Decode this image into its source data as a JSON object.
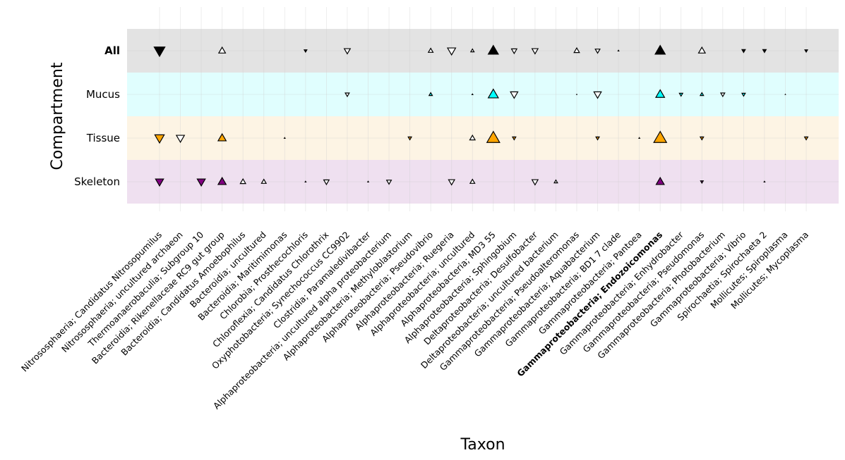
{
  "chart_data": {
    "type": "scatter",
    "xlabel": "Taxon",
    "ylabel": "Compartment",
    "grid": true,
    "compartments": [
      {
        "name": "All",
        "band_color": "#e3e3e3",
        "marker_color": "#000000",
        "bold": true
      },
      {
        "name": "Mucus",
        "band_color": "#e0fefe",
        "marker_color": "#00ffff",
        "bold": false
      },
      {
        "name": "Tissue",
        "band_color": "#fdf4e4",
        "marker_color": "#ffa500",
        "bold": false
      },
      {
        "name": "Skeleton",
        "band_color": "#efe0f0",
        "marker_color": "#800080",
        "bold": false
      }
    ],
    "taxa": [
      "Nitrososphaeria; Candidatus Nitrosopumilus",
      "Nitrososphaeria; uncultured archaeon",
      "Thermoanaerobaculia; Subgroup 10",
      "Bacteroidia; Rikenellaceae RC9 gut group",
      "Bacteroidia; Candidatus Amoebophilus",
      "Bacteroidia; uncultured",
      "Bacteroidia; Maritimimonas",
      "Chlorobia; Prosthecochloris",
      "Chloroflexia; Candidatus Chlorothrix",
      "Oxyphotobacteria; Synechococcus CC9902",
      "Clostridia; Paramaledivibacter",
      "Alphaproteobacteria; uncultured alpha proteobacterium",
      "Alphaproteobacteria; Methyloblastorium",
      "Alphaproteobacteria; Pseudovibrio",
      "Alphaproteobacteria; Ruegeria",
      "Alphaproteobacteria; uncultured",
      "Alphaproteobacteria; MD3 55",
      "Alphaproteobacteria; Sphingobium",
      "Deltaproteobacteria; Desulfobacter",
      "Deltaproteobacteria; uncultured bacterium",
      "Gammaproteobacteria; Pseudoalteromonas",
      "Gammaproteobacteria; Aquabacterium",
      "Gammaproteobacteria; BD1 7 clade",
      "Gammaproteobacteria; Pantoea",
      "Gammaproteobacteria; Endozoicomonas",
      "Gammaproteobacteria; Enhydrobacter",
      "Gammaproteobacteria; Pseudomonas",
      "Gammaproteobacteria; Photobacterium",
      "Gammaproteobacteria; Vibrio",
      "Spirochaetia; Spirochaeta 2",
      "Mollicutes; Spiroplasma",
      "Mollicutes; Mycoplasma"
    ],
    "bold_taxa": [
      "Gammaproteobacteria; Endozoicomonas"
    ],
    "points": [
      {
        "compartment": "All",
        "taxon": 0,
        "direction": "down",
        "size": 16,
        "filled": true
      },
      {
        "compartment": "All",
        "taxon": 3,
        "direction": "up",
        "size": 10,
        "filled": false
      },
      {
        "compartment": "All",
        "taxon": 7,
        "direction": "down",
        "size": 4,
        "filled": true
      },
      {
        "compartment": "All",
        "taxon": 9,
        "direction": "down",
        "size": 9,
        "filled": false
      },
      {
        "compartment": "All",
        "taxon": 13,
        "direction": "up",
        "size": 7,
        "filled": false
      },
      {
        "compartment": "All",
        "taxon": 14,
        "direction": "down",
        "size": 12,
        "filled": false
      },
      {
        "compartment": "All",
        "taxon": 15,
        "direction": "up",
        "size": 5,
        "filled": false
      },
      {
        "compartment": "All",
        "taxon": 16,
        "direction": "up",
        "size": 15,
        "filled": true
      },
      {
        "compartment": "All",
        "taxon": 17,
        "direction": "down",
        "size": 8,
        "filled": false
      },
      {
        "compartment": "All",
        "taxon": 18,
        "direction": "down",
        "size": 9,
        "filled": false
      },
      {
        "compartment": "All",
        "taxon": 20,
        "direction": "up",
        "size": 8,
        "filled": false
      },
      {
        "compartment": "All",
        "taxon": 21,
        "direction": "down",
        "size": 7,
        "filled": false
      },
      {
        "compartment": "All",
        "taxon": 22,
        "direction": "up",
        "size": 2,
        "filled": true
      },
      {
        "compartment": "All",
        "taxon": 24,
        "direction": "up",
        "size": 15,
        "filled": true
      },
      {
        "compartment": "All",
        "taxon": 26,
        "direction": "up",
        "size": 10,
        "filled": false
      },
      {
        "compartment": "All",
        "taxon": 28,
        "direction": "down",
        "size": 5,
        "filled": true
      },
      {
        "compartment": "All",
        "taxon": 29,
        "direction": "down",
        "size": 5,
        "filled": true
      },
      {
        "compartment": "All",
        "taxon": 31,
        "direction": "down",
        "size": 4,
        "filled": true
      },
      {
        "compartment": "Mucus",
        "taxon": 9,
        "direction": "down",
        "size": 6,
        "filled": false
      },
      {
        "compartment": "Mucus",
        "taxon": 13,
        "direction": "up",
        "size": 5,
        "filled": true
      },
      {
        "compartment": "Mucus",
        "taxon": 15,
        "direction": "up",
        "size": 2,
        "filled": true
      },
      {
        "compartment": "Mucus",
        "taxon": 16,
        "direction": "up",
        "size": 15,
        "filled": true
      },
      {
        "compartment": "Mucus",
        "taxon": 17,
        "direction": "down",
        "size": 11,
        "filled": false
      },
      {
        "compartment": "Mucus",
        "taxon": 20,
        "direction": "up",
        "size": 1,
        "filled": true
      },
      {
        "compartment": "Mucus",
        "taxon": 21,
        "direction": "down",
        "size": 11,
        "filled": false
      },
      {
        "compartment": "Mucus",
        "taxon": 24,
        "direction": "up",
        "size": 13,
        "filled": true
      },
      {
        "compartment": "Mucus",
        "taxon": 25,
        "direction": "down",
        "size": 5,
        "filled": true
      },
      {
        "compartment": "Mucus",
        "taxon": 26,
        "direction": "up",
        "size": 5,
        "filled": true
      },
      {
        "compartment": "Mucus",
        "taxon": 27,
        "direction": "down",
        "size": 6,
        "filled": false
      },
      {
        "compartment": "Mucus",
        "taxon": 28,
        "direction": "down",
        "size": 5,
        "filled": true
      },
      {
        "compartment": "Mucus",
        "taxon": 30,
        "direction": "up",
        "size": 1,
        "filled": true
      },
      {
        "compartment": "Tissue",
        "taxon": 0,
        "direction": "down",
        "size": 14,
        "filled": true
      },
      {
        "compartment": "Tissue",
        "taxon": 1,
        "direction": "down",
        "size": 12,
        "filled": false
      },
      {
        "compartment": "Tissue",
        "taxon": 3,
        "direction": "up",
        "size": 12,
        "filled": true
      },
      {
        "compartment": "Tissue",
        "taxon": 6,
        "direction": "up",
        "size": 2,
        "filled": true
      },
      {
        "compartment": "Tissue",
        "taxon": 12,
        "direction": "down",
        "size": 5,
        "filled": true
      },
      {
        "compartment": "Tissue",
        "taxon": 15,
        "direction": "up",
        "size": 8,
        "filled": false
      },
      {
        "compartment": "Tissue",
        "taxon": 16,
        "direction": "up",
        "size": 19,
        "filled": true
      },
      {
        "compartment": "Tissue",
        "taxon": 17,
        "direction": "down",
        "size": 5,
        "filled": true
      },
      {
        "compartment": "Tissue",
        "taxon": 21,
        "direction": "down",
        "size": 5,
        "filled": true
      },
      {
        "compartment": "Tissue",
        "taxon": 23,
        "direction": "up",
        "size": 2,
        "filled": true
      },
      {
        "compartment": "Tissue",
        "taxon": 24,
        "direction": "up",
        "size": 19,
        "filled": true
      },
      {
        "compartment": "Tissue",
        "taxon": 26,
        "direction": "down",
        "size": 5,
        "filled": true
      },
      {
        "compartment": "Tissue",
        "taxon": 31,
        "direction": "down",
        "size": 5,
        "filled": true
      },
      {
        "compartment": "Skeleton",
        "taxon": 0,
        "direction": "down",
        "size": 12,
        "filled": true
      },
      {
        "compartment": "Skeleton",
        "taxon": 2,
        "direction": "down",
        "size": 12,
        "filled": true
      },
      {
        "compartment": "Skeleton",
        "taxon": 3,
        "direction": "up",
        "size": 12,
        "filled": true
      },
      {
        "compartment": "Skeleton",
        "taxon": 4,
        "direction": "up",
        "size": 8,
        "filled": false
      },
      {
        "compartment": "Skeleton",
        "taxon": 5,
        "direction": "up",
        "size": 7,
        "filled": false
      },
      {
        "compartment": "Skeleton",
        "taxon": 7,
        "direction": "up",
        "size": 2,
        "filled": true
      },
      {
        "compartment": "Skeleton",
        "taxon": 8,
        "direction": "down",
        "size": 8,
        "filled": false
      },
      {
        "compartment": "Skeleton",
        "taxon": 10,
        "direction": "up",
        "size": 2,
        "filled": true
      },
      {
        "compartment": "Skeleton",
        "taxon": 11,
        "direction": "down",
        "size": 7,
        "filled": false
      },
      {
        "compartment": "Skeleton",
        "taxon": 14,
        "direction": "down",
        "size": 9,
        "filled": false
      },
      {
        "compartment": "Skeleton",
        "taxon": 15,
        "direction": "up",
        "size": 7,
        "filled": false
      },
      {
        "compartment": "Skeleton",
        "taxon": 18,
        "direction": "down",
        "size": 9,
        "filled": false
      },
      {
        "compartment": "Skeleton",
        "taxon": 19,
        "direction": "up",
        "size": 5,
        "filled": false
      },
      {
        "compartment": "Skeleton",
        "taxon": 24,
        "direction": "up",
        "size": 12,
        "filled": true
      },
      {
        "compartment": "Skeleton",
        "taxon": 26,
        "direction": "down",
        "size": 4,
        "filled": true
      },
      {
        "compartment": "Skeleton",
        "taxon": 29,
        "direction": "up",
        "size": 2,
        "filled": true
      }
    ]
  }
}
